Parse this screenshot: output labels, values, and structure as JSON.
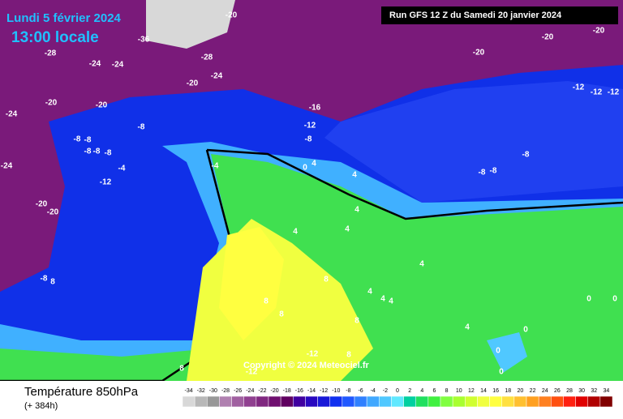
{
  "header": {
    "date": "Lundi 5 février 2024",
    "time": "13:00 locale",
    "run": "Run GFS 12 Z du Samedi 20 janvier 2024"
  },
  "copyright": "Copyright © 2024 Meteociel.fr",
  "footer": {
    "title": "Température 850hPa",
    "lead": "(+ 384h)"
  },
  "colorbar": {
    "ticks": [
      -34,
      -32,
      -30,
      -28,
      -26,
      -24,
      -22,
      -20,
      -18,
      -16,
      -14,
      -12,
      -10,
      -8,
      -6,
      -4,
      -2,
      0,
      2,
      4,
      6,
      8,
      10,
      12,
      14,
      16,
      18,
      20,
      22,
      24,
      26,
      28,
      30,
      32,
      34
    ],
    "colors": [
      "#d8d8d8",
      "#b8b8b8",
      "#989898",
      "#b080b0",
      "#a060a0",
      "#904090",
      "#802880",
      "#701070",
      "#600060",
      "#4000a0",
      "#2808c0",
      "#1818d8",
      "#1030f0",
      "#2058ff",
      "#3080ff",
      "#40a8ff",
      "#50c8ff",
      "#60e8ff",
      "#00d0a0",
      "#20e060",
      "#40f040",
      "#80ff40",
      "#a8ff30",
      "#d0ff30",
      "#f0ff40",
      "#ffff40",
      "#ffe040",
      "#ffc030",
      "#ffa020",
      "#ff8020",
      "#ff5010",
      "#ff2010",
      "#e00000",
      "#b00000",
      "#800000"
    ]
  },
  "map": {
    "labels": [
      "-20",
      "-36",
      "-28",
      "-28",
      "-24",
      "-24",
      "-24",
      "-20",
      "-20",
      "-20",
      "-24",
      "-16",
      "-12",
      "-8",
      "-8",
      "-8",
      "-8",
      "-8",
      "-8",
      "-8",
      "-4",
      "-12",
      "-24",
      "-20",
      "-20",
      "-4",
      "0",
      "4",
      "4",
      "-20",
      "-20",
      "-20",
      "-12",
      "-12",
      "-12",
      "-8",
      "-8",
      "-8",
      "4",
      "4",
      "4",
      "4",
      "8",
      "4",
      "4",
      "4",
      "8",
      "8",
      "8",
      "4",
      "0",
      "0",
      "0",
      "0",
      "0",
      "-8",
      "8",
      "-12",
      "-12",
      "8",
      "8"
    ]
  }
}
